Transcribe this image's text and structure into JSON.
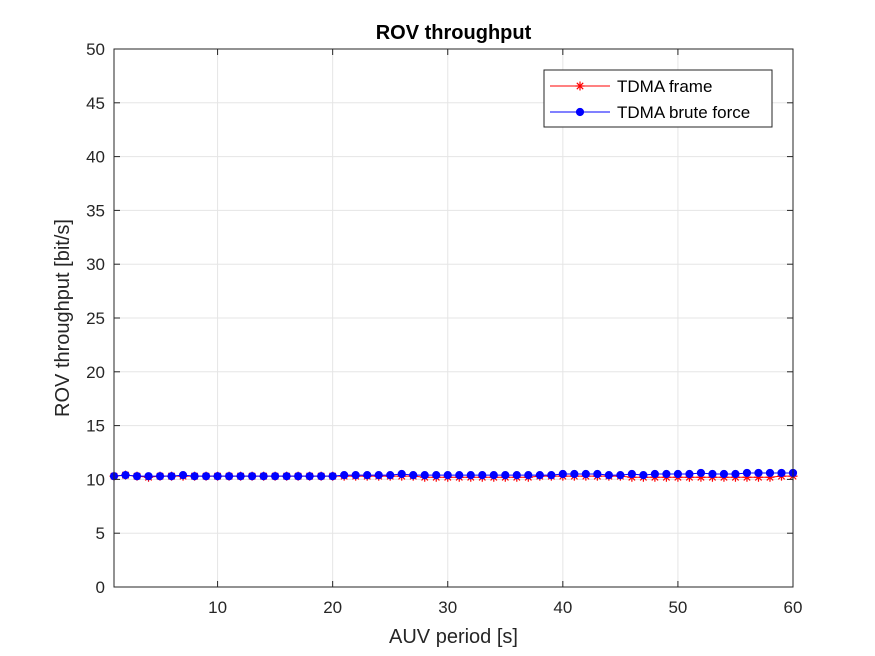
{
  "chart_data": {
    "type": "line",
    "title": "ROV throughput",
    "xlabel": "AUV period [s]",
    "ylabel": "ROV throughput [bit/s]",
    "xlim": [
      1,
      60
    ],
    "ylim": [
      0,
      50
    ],
    "xticks": [
      10,
      20,
      30,
      40,
      50,
      60
    ],
    "yticks": [
      0,
      5,
      10,
      15,
      20,
      25,
      30,
      35,
      40,
      45,
      50
    ],
    "grid": true,
    "legend_position": "top-right",
    "x": [
      1,
      2,
      3,
      4,
      5,
      6,
      7,
      8,
      9,
      10,
      11,
      12,
      13,
      14,
      15,
      16,
      17,
      18,
      19,
      20,
      21,
      22,
      23,
      24,
      25,
      26,
      27,
      28,
      29,
      30,
      31,
      32,
      33,
      34,
      35,
      36,
      37,
      38,
      39,
      40,
      41,
      42,
      43,
      44,
      45,
      46,
      47,
      48,
      49,
      50,
      51,
      52,
      53,
      54,
      55,
      56,
      57,
      58,
      59,
      60
    ],
    "series": [
      {
        "name": "TDMA frame",
        "color": "#ff0000",
        "marker": "asterisk",
        "values": [
          10.3,
          10.4,
          10.3,
          10.2,
          10.3,
          10.3,
          10.3,
          10.3,
          10.3,
          10.3,
          10.3,
          10.3,
          10.3,
          10.3,
          10.3,
          10.3,
          10.3,
          10.3,
          10.3,
          10.3,
          10.3,
          10.3,
          10.3,
          10.3,
          10.3,
          10.3,
          10.3,
          10.2,
          10.2,
          10.2,
          10.2,
          10.2,
          10.2,
          10.2,
          10.2,
          10.2,
          10.2,
          10.3,
          10.3,
          10.3,
          10.3,
          10.3,
          10.3,
          10.3,
          10.3,
          10.2,
          10.2,
          10.2,
          10.2,
          10.2,
          10.2,
          10.2,
          10.2,
          10.2,
          10.2,
          10.2,
          10.2,
          10.2,
          10.3,
          10.3
        ]
      },
      {
        "name": "TDMA brute force",
        "color": "#0000ff",
        "marker": "dot",
        "values": [
          10.3,
          10.4,
          10.3,
          10.3,
          10.3,
          10.3,
          10.4,
          10.3,
          10.3,
          10.3,
          10.3,
          10.3,
          10.3,
          10.3,
          10.3,
          10.3,
          10.3,
          10.3,
          10.3,
          10.3,
          10.4,
          10.4,
          10.4,
          10.4,
          10.4,
          10.5,
          10.4,
          10.4,
          10.4,
          10.4,
          10.4,
          10.4,
          10.4,
          10.4,
          10.4,
          10.4,
          10.4,
          10.4,
          10.4,
          10.5,
          10.5,
          10.5,
          10.5,
          10.4,
          10.4,
          10.5,
          10.4,
          10.5,
          10.5,
          10.5,
          10.5,
          10.6,
          10.5,
          10.5,
          10.5,
          10.6,
          10.6,
          10.6,
          10.6,
          10.6
        ]
      }
    ]
  }
}
